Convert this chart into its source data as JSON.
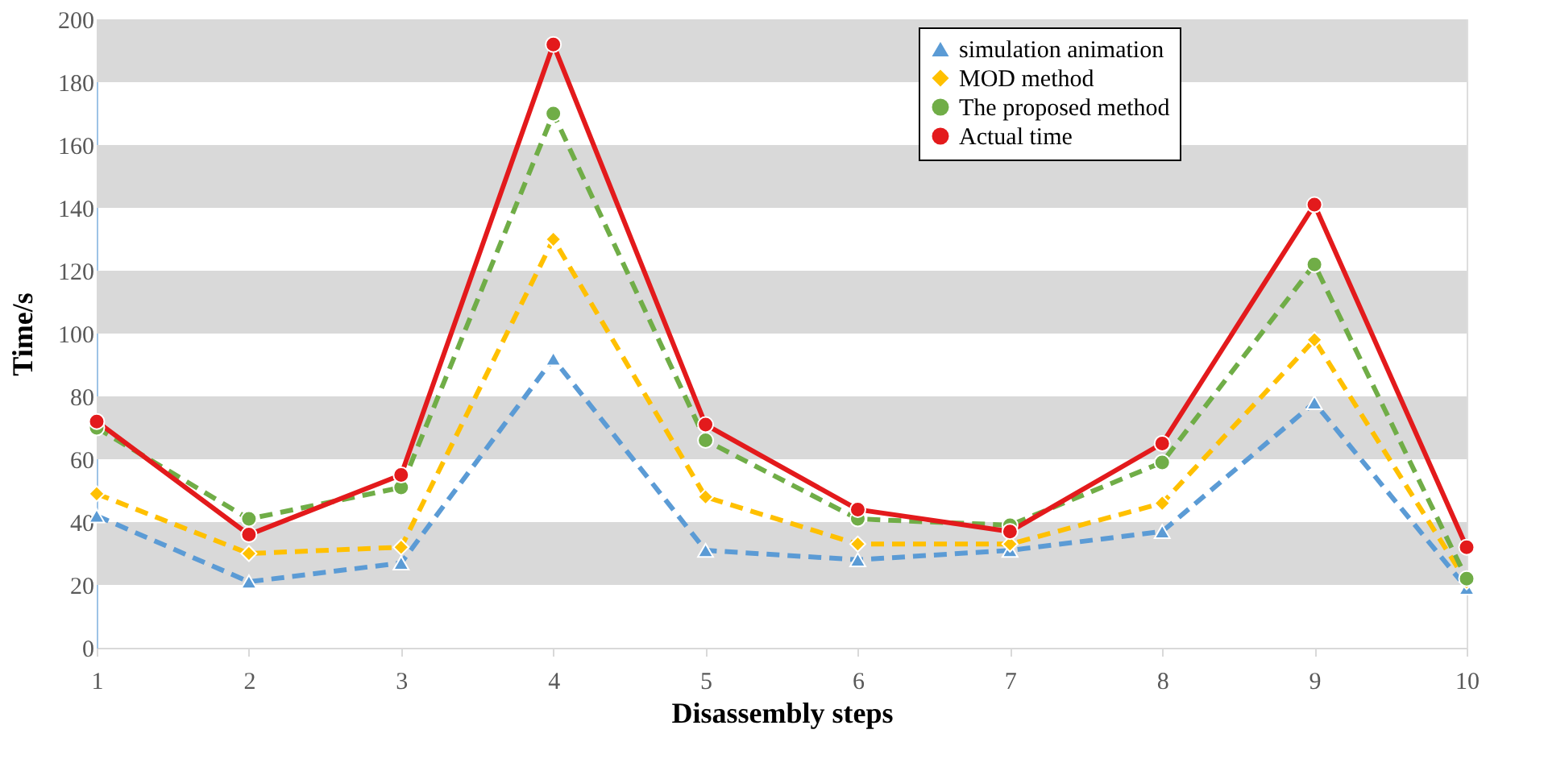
{
  "chart_data": {
    "type": "line",
    "xlabel": "Disassembly steps",
    "ylabel": "Time/s",
    "categories": [
      "1",
      "2",
      "3",
      "4",
      "5",
      "6",
      "7",
      "8",
      "9",
      "10"
    ],
    "series": [
      {
        "name": "simulation animation",
        "color": "#5b9bd5",
        "marker": "triangle",
        "line_style": "dashed",
        "values": [
          42,
          21,
          27,
          92,
          31,
          28,
          31,
          37,
          78,
          19
        ]
      },
      {
        "name": "MOD method",
        "color": "#ffc000",
        "marker": "diamond",
        "line_style": "dashed",
        "values": [
          49,
          30,
          32,
          130,
          48,
          33,
          33,
          46,
          98,
          21
        ]
      },
      {
        "name": "The proposed method",
        "color": "#70ad47",
        "marker": "circle",
        "line_style": "dashed",
        "values": [
          70,
          41,
          51,
          170,
          66,
          41,
          39,
          59,
          122,
          22
        ]
      },
      {
        "name": "Actual time",
        "color": "#e31a1c",
        "marker": "circle",
        "line_style": "solid",
        "values": [
          72,
          36,
          55,
          192,
          71,
          44,
          37,
          65,
          141,
          32
        ]
      }
    ],
    "ylim": [
      0,
      200
    ],
    "yticks": [
      0,
      20,
      40,
      60,
      80,
      100,
      120,
      140,
      160,
      180,
      200
    ],
    "bands": [
      {
        "axis": "y",
        "from": 20,
        "to": 40,
        "color": "#d9d9d9"
      },
      {
        "axis": "y",
        "from": 60,
        "to": 80,
        "color": "#d9d9d9"
      },
      {
        "axis": "y",
        "from": 100,
        "to": 120,
        "color": "#d9d9d9"
      },
      {
        "axis": "y",
        "from": 140,
        "to": 160,
        "color": "#d9d9d9"
      },
      {
        "axis": "y",
        "from": 180,
        "to": 200,
        "color": "#d9d9d9"
      }
    ],
    "grid": false,
    "legend": "top right"
  }
}
